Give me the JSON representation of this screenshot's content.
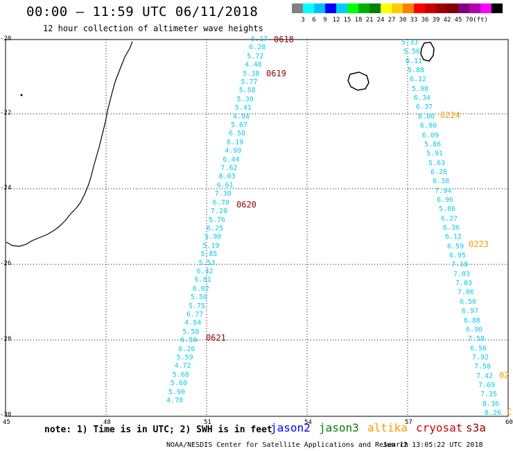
{
  "title": "00:00 – 11:59 UTC 06/11/2018",
  "subtitle": "12 hour collection of altimeter wave heights",
  "legend": {
    "colors": [
      "#808080",
      "#00ffff",
      "#00bfff",
      "#0000ff",
      "#00ccff",
      "#00ff00",
      "#00b000",
      "#008000",
      "#ffff00",
      "#ffcc00",
      "#ff8000",
      "#ff0000",
      "#cc0000",
      "#a00000",
      "#800000",
      "#800080",
      "#b000b0",
      "#ff00ff",
      "#000000"
    ],
    "labels": [
      "3",
      "6",
      "9",
      "12",
      "15",
      "18",
      "21",
      "24",
      "27",
      "30",
      "33",
      "36",
      "39",
      "42",
      "45",
      "70",
      "(ft)"
    ]
  },
  "axes": {
    "lon_labels": [
      "45",
      "48",
      "51",
      "54",
      "57",
      "60"
    ],
    "lat_labels": [
      "-20",
      "-22",
      "-24",
      "-26",
      "-28",
      "-30"
    ]
  },
  "track_color": "#00ccee",
  "track_a": {
    "values": [
      "6.17",
      "6.28",
      "5.72",
      "4.48",
      "5.38",
      "5.77",
      "5.58",
      "5.30",
      "5.41",
      "4.94",
      "5.67",
      "6.58",
      "6.19",
      "4.99",
      "6.44",
      "7.62",
      "8.03",
      "6.61",
      "7.30",
      "6.70",
      "7.20",
      "5.76",
      "6.25",
      "5.90",
      "5.19",
      "5.85",
      "5.53",
      "6.42",
      "6.81",
      "6.02",
      "5.50",
      "5.75",
      "6.77",
      "4.94",
      "5.58",
      "6.50",
      "6.26",
      "5.59",
      "4.72",
      "5.68",
      "5.60",
      "5.90",
      "4.78"
    ]
  },
  "track_b": {
    "values": [
      "5.33",
      "5.56",
      "6.11",
      "5.88",
      "6.12",
      "5.98",
      "6.34",
      "6.37",
      "8.00",
      "6.90",
      "6.09",
      "5.86",
      "5.91",
      "5.63",
      "6.28",
      "6.38",
      "7.94",
      "6.96",
      "5.86",
      "6.27",
      "6.36",
      "6.12",
      "6.59",
      "6.95",
      "7.18",
      "7.03",
      "7.03",
      "7.06",
      "6.50",
      "6.97",
      "6.88",
      "6.90",
      "7.58",
      "6.56",
      "7.92",
      "7.58",
      "7.42",
      "7.69",
      "7.35",
      "8.36",
      "8.26"
    ]
  },
  "times_a": [
    "0618",
    "0619",
    "0620",
    "0621"
  ],
  "times_b": [
    "0224",
    "0223",
    "02",
    "C"
  ],
  "note": "note: 1) Time is in UTC; 2) SWH is in feet",
  "satellites": {
    "jason2": {
      "label": "jason2",
      "color": "#0000ff"
    },
    "jason3": {
      "label": "jason3",
      "color": "#008000"
    },
    "altika": {
      "label": "altika",
      "color": "#ff9900"
    },
    "cryosat": {
      "label": "cryosat",
      "color": "#cc0000"
    },
    "s3a": {
      "label": "s3a",
      "color": "#990000"
    }
  },
  "credit": "NOAA/NESDIS Center for Satellite Applications and Research",
  "timestamp": "Jun 12 13:05:22 UTC 2018",
  "colors": {
    "time_a": "#8b0000",
    "time_b": "#ff9900"
  }
}
